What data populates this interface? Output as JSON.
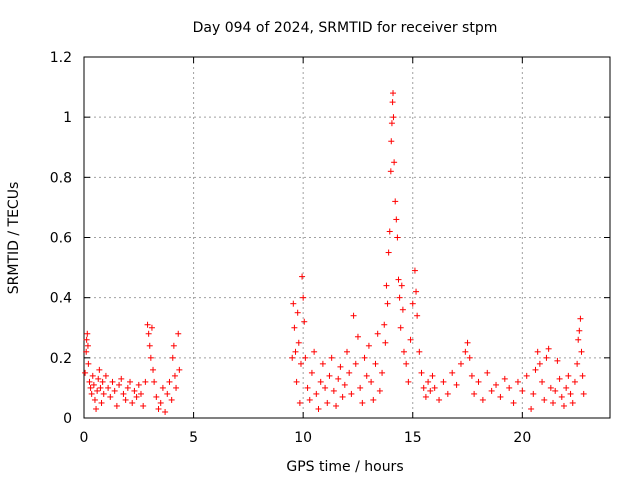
{
  "chart_data": {
    "type": "scatter",
    "title": "Day 094 of 2024, SRMTID for receiver stpm",
    "xlabel": "GPS time / hours",
    "ylabel": "SRMTID / TECUs",
    "xlim": [
      0,
      24
    ],
    "ylim": [
      0,
      1.2
    ],
    "xticks": [
      0,
      5,
      10,
      15,
      20
    ],
    "xtick_labels": [
      "0",
      "5",
      "10",
      "15",
      "20"
    ],
    "yticks": [
      0,
      0.2,
      0.4,
      0.6,
      0.8,
      1.0,
      1.2
    ],
    "ytick_labels": [
      "0",
      "0.2",
      "0.4",
      "0.6",
      "0.8",
      "1",
      "1.2"
    ],
    "grid": true,
    "marker": "+",
    "color": "#ff0000",
    "series": [
      {
        "name": "SRMTID",
        "points": [
          [
            0.05,
            0.15
          ],
          [
            0.1,
            0.22
          ],
          [
            0.12,
            0.26
          ],
          [
            0.15,
            0.28
          ],
          [
            0.18,
            0.24
          ],
          [
            0.2,
            0.18
          ],
          [
            0.25,
            0.12
          ],
          [
            0.3,
            0.1
          ],
          [
            0.35,
            0.08
          ],
          [
            0.4,
            0.14
          ],
          [
            0.45,
            0.11
          ],
          [
            0.5,
            0.06
          ],
          [
            0.55,
            0.03
          ],
          [
            0.6,
            0.09
          ],
          [
            0.65,
            0.13
          ],
          [
            0.7,
            0.16
          ],
          [
            0.75,
            0.1
          ],
          [
            0.8,
            0.05
          ],
          [
            0.85,
            0.12
          ],
          [
            0.9,
            0.08
          ],
          [
            1.0,
            0.14
          ],
          [
            1.1,
            0.1
          ],
          [
            1.2,
            0.07
          ],
          [
            1.3,
            0.12
          ],
          [
            1.4,
            0.09
          ],
          [
            1.5,
            0.04
          ],
          [
            1.6,
            0.11
          ],
          [
            1.7,
            0.13
          ],
          [
            1.8,
            0.08
          ],
          [
            1.9,
            0.06
          ],
          [
            2.0,
            0.1
          ],
          [
            2.1,
            0.12
          ],
          [
            2.2,
            0.05
          ],
          [
            2.3,
            0.09
          ],
          [
            2.4,
            0.07
          ],
          [
            2.5,
            0.11
          ],
          [
            2.6,
            0.08
          ],
          [
            2.7,
            0.04
          ],
          [
            2.8,
            0.12
          ],
          [
            2.9,
            0.31
          ],
          [
            2.95,
            0.28
          ],
          [
            3.0,
            0.24
          ],
          [
            3.05,
            0.2
          ],
          [
            3.1,
            0.3
          ],
          [
            3.15,
            0.16
          ],
          [
            3.2,
            0.12
          ],
          [
            3.3,
            0.07
          ],
          [
            3.4,
            0.03
          ],
          [
            3.5,
            0.05
          ],
          [
            3.6,
            0.1
          ],
          [
            3.7,
            0.02
          ],
          [
            3.8,
            0.08
          ],
          [
            3.9,
            0.12
          ],
          [
            4.0,
            0.06
          ],
          [
            4.05,
            0.2
          ],
          [
            4.1,
            0.24
          ],
          [
            4.15,
            0.14
          ],
          [
            4.2,
            0.1
          ],
          [
            4.3,
            0.28
          ],
          [
            4.35,
            0.16
          ],
          [
            9.5,
            0.2
          ],
          [
            9.55,
            0.38
          ],
          [
            9.6,
            0.3
          ],
          [
            9.65,
            0.22
          ],
          [
            9.7,
            0.12
          ],
          [
            9.75,
            0.35
          ],
          [
            9.8,
            0.25
          ],
          [
            9.85,
            0.05
          ],
          [
            9.9,
            0.18
          ],
          [
            9.95,
            0.47
          ],
          [
            10.0,
            0.4
          ],
          [
            10.05,
            0.32
          ],
          [
            10.1,
            0.2
          ],
          [
            10.2,
            0.1
          ],
          [
            10.3,
            0.06
          ],
          [
            10.4,
            0.15
          ],
          [
            10.5,
            0.22
          ],
          [
            10.6,
            0.08
          ],
          [
            10.7,
            0.03
          ],
          [
            10.8,
            0.12
          ],
          [
            10.9,
            0.18
          ],
          [
            11.0,
            0.1
          ],
          [
            11.1,
            0.05
          ],
          [
            11.2,
            0.14
          ],
          [
            11.3,
            0.2
          ],
          [
            11.4,
            0.09
          ],
          [
            11.5,
            0.04
          ],
          [
            11.6,
            0.13
          ],
          [
            11.7,
            0.17
          ],
          [
            11.8,
            0.07
          ],
          [
            11.9,
            0.11
          ],
          [
            12.0,
            0.22
          ],
          [
            12.1,
            0.15
          ],
          [
            12.2,
            0.08
          ],
          [
            12.3,
            0.34
          ],
          [
            12.4,
            0.18
          ],
          [
            12.5,
            0.27
          ],
          [
            12.6,
            0.1
          ],
          [
            12.7,
            0.05
          ],
          [
            12.8,
            0.2
          ],
          [
            12.9,
            0.14
          ],
          [
            13.0,
            0.24
          ],
          [
            13.1,
            0.12
          ],
          [
            13.2,
            0.06
          ],
          [
            13.3,
            0.18
          ],
          [
            13.4,
            0.28
          ],
          [
            13.5,
            0.09
          ],
          [
            13.6,
            0.15
          ],
          [
            13.7,
            0.31
          ],
          [
            13.75,
            0.25
          ],
          [
            13.8,
            0.44
          ],
          [
            13.85,
            0.38
          ],
          [
            13.9,
            0.55
          ],
          [
            13.95,
            0.62
          ],
          [
            14.0,
            0.82
          ],
          [
            14.02,
            0.92
          ],
          [
            14.05,
            0.98
          ],
          [
            14.08,
            1.05
          ],
          [
            14.1,
            1.08
          ],
          [
            14.12,
            1.0
          ],
          [
            14.15,
            0.85
          ],
          [
            14.2,
            0.72
          ],
          [
            14.25,
            0.66
          ],
          [
            14.3,
            0.6
          ],
          [
            14.35,
            0.46
          ],
          [
            14.4,
            0.4
          ],
          [
            14.45,
            0.3
          ],
          [
            14.5,
            0.44
          ],
          [
            14.55,
            0.36
          ],
          [
            14.6,
            0.22
          ],
          [
            14.7,
            0.18
          ],
          [
            14.8,
            0.12
          ],
          [
            14.9,
            0.26
          ],
          [
            15.0,
            0.38
          ],
          [
            15.1,
            0.49
          ],
          [
            15.15,
            0.42
          ],
          [
            15.2,
            0.34
          ],
          [
            15.3,
            0.22
          ],
          [
            15.4,
            0.15
          ],
          [
            15.5,
            0.1
          ],
          [
            15.6,
            0.07
          ],
          [
            15.7,
            0.12
          ],
          [
            15.8,
            0.09
          ],
          [
            15.9,
            0.14
          ],
          [
            16.0,
            0.1
          ],
          [
            16.2,
            0.06
          ],
          [
            16.4,
            0.12
          ],
          [
            16.6,
            0.08
          ],
          [
            16.8,
            0.15
          ],
          [
            17.0,
            0.11
          ],
          [
            17.2,
            0.18
          ],
          [
            17.4,
            0.22
          ],
          [
            17.5,
            0.25
          ],
          [
            17.6,
            0.2
          ],
          [
            17.7,
            0.14
          ],
          [
            17.8,
            0.08
          ],
          [
            18.0,
            0.12
          ],
          [
            18.2,
            0.06
          ],
          [
            18.4,
            0.15
          ],
          [
            18.6,
            0.09
          ],
          [
            18.8,
            0.11
          ],
          [
            19.0,
            0.07
          ],
          [
            19.2,
            0.13
          ],
          [
            19.4,
            0.1
          ],
          [
            19.6,
            0.05
          ],
          [
            19.8,
            0.12
          ],
          [
            20.0,
            0.09
          ],
          [
            20.2,
            0.14
          ],
          [
            20.4,
            0.03
          ],
          [
            20.5,
            0.08
          ],
          [
            20.6,
            0.16
          ],
          [
            20.7,
            0.22
          ],
          [
            20.8,
            0.18
          ],
          [
            20.9,
            0.12
          ],
          [
            21.0,
            0.06
          ],
          [
            21.1,
            0.2
          ],
          [
            21.2,
            0.23
          ],
          [
            21.3,
            0.1
          ],
          [
            21.4,
            0.05
          ],
          [
            21.5,
            0.09
          ],
          [
            21.6,
            0.19
          ],
          [
            21.7,
            0.13
          ],
          [
            21.8,
            0.07
          ],
          [
            21.9,
            0.04
          ],
          [
            22.0,
            0.1
          ],
          [
            22.1,
            0.14
          ],
          [
            22.2,
            0.08
          ],
          [
            22.3,
            0.05
          ],
          [
            22.4,
            0.12
          ],
          [
            22.5,
            0.18
          ],
          [
            22.55,
            0.26
          ],
          [
            22.6,
            0.29
          ],
          [
            22.65,
            0.33
          ],
          [
            22.7,
            0.22
          ],
          [
            22.75,
            0.14
          ],
          [
            22.8,
            0.08
          ]
        ]
      }
    ]
  }
}
